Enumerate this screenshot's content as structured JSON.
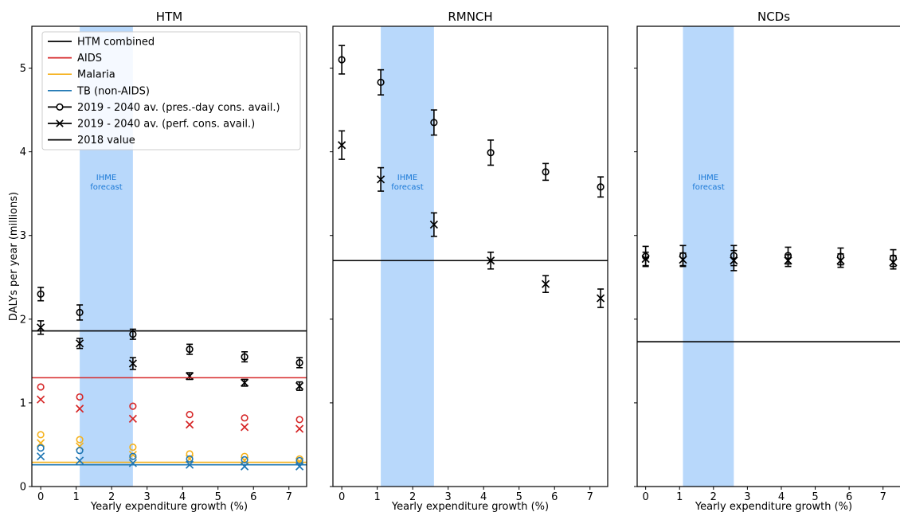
{
  "chart_data": [
    {
      "type": "scatter",
      "title": "HTM",
      "xlabel": "Yearly expenditure growth (%)",
      "ylabel": "DALYs per year (millions)",
      "xlim": [
        -0.25,
        7.5
      ],
      "ylim": [
        0,
        5.5
      ],
      "xticks": [
        0,
        1,
        2,
        3,
        4,
        5,
        6,
        7
      ],
      "yticks": [
        0,
        1,
        2,
        3,
        4,
        5
      ],
      "band": {
        "x0": 1.1,
        "x1": 2.6,
        "label_line1": "IHME",
        "label_line2": "forecast",
        "color": "#b8d8fb"
      },
      "legend": {
        "placement": "top-left",
        "entries": [
          {
            "label": "HTM combined",
            "kind": "line",
            "color": "#000000"
          },
          {
            "label": "AIDS",
            "kind": "line",
            "color": "#d62728"
          },
          {
            "label": "Malaria",
            "kind": "line",
            "color": "#f5b21d"
          },
          {
            "label": "TB (non-AIDS)",
            "kind": "line",
            "color": "#1f77b4"
          },
          {
            "label": "2019 - 2040 av. (pres.-day cons. avail.)",
            "kind": "circle",
            "color": "#000000"
          },
          {
            "label": "2019 - 2040 av. (perf. cons. avail.)",
            "kind": "cross",
            "color": "#000000"
          },
          {
            "label": "2018 value",
            "kind": "line",
            "color": "#000000"
          }
        ]
      },
      "x": [
        0,
        1.1,
        2.6,
        4.2,
        5.75,
        7.3
      ],
      "series": [
        {
          "name": "HTM combined",
          "color": "#000000",
          "hline": 1.86,
          "circle": [
            2.3,
            2.08,
            1.82,
            1.64,
            1.55,
            1.48
          ],
          "circle_err": [
            0.08,
            0.09,
            0.06,
            0.06,
            0.06,
            0.06
          ],
          "cross": [
            1.9,
            1.71,
            1.47,
            1.32,
            1.24,
            1.2
          ],
          "cross_err": [
            0.08,
            0.06,
            0.07,
            0.04,
            0.04,
            0.05
          ]
        },
        {
          "name": "AIDS",
          "color": "#d62728",
          "hline": 1.3,
          "circle": [
            1.19,
            1.07,
            0.96,
            0.86,
            0.82,
            0.8
          ],
          "cross": [
            1.04,
            0.93,
            0.81,
            0.74,
            0.71,
            0.69
          ]
        },
        {
          "name": "Malaria",
          "color": "#f5b21d",
          "hline": 0.29,
          "circle": [
            0.62,
            0.56,
            0.47,
            0.39,
            0.36,
            0.33
          ],
          "cross": [
            0.52,
            0.48,
            0.38,
            0.33,
            0.31,
            0.3
          ]
        },
        {
          "name": "TB (non-AIDS)",
          "color": "#1f77b4",
          "hline": 0.26,
          "circle": [
            0.46,
            0.43,
            0.36,
            0.33,
            0.32,
            0.31
          ],
          "cross": [
            0.36,
            0.31,
            0.28,
            0.26,
            0.24,
            0.24
          ]
        }
      ]
    },
    {
      "type": "scatter",
      "title": "RMNCH",
      "xlabel": "Yearly expenditure growth (%)",
      "xlim": [
        -0.25,
        7.5
      ],
      "ylim": [
        0,
        5.5
      ],
      "xticks": [
        0,
        1,
        2,
        3,
        4,
        5,
        6,
        7
      ],
      "yticks": [
        0,
        1,
        2,
        3,
        4,
        5
      ],
      "band": {
        "x0": 1.1,
        "x1": 2.6,
        "label_line1": "IHME",
        "label_line2": "forecast",
        "color": "#b8d8fb"
      },
      "x": [
        0,
        1.1,
        2.6,
        4.2,
        5.75,
        7.3
      ],
      "series": [
        {
          "color": "#000000",
          "hline": 2.7,
          "circle": [
            5.1,
            4.83,
            4.35,
            3.99,
            3.76,
            3.58
          ],
          "circle_err": [
            0.17,
            0.15,
            0.15,
            0.15,
            0.1,
            0.12
          ],
          "cross": [
            4.08,
            3.67,
            3.13,
            2.7,
            2.42,
            2.25
          ],
          "cross_err": [
            0.17,
            0.14,
            0.14,
            0.1,
            0.1,
            0.11
          ]
        }
      ]
    },
    {
      "type": "scatter",
      "title": "NCDs",
      "xlabel": "Yearly expenditure growth (%)",
      "xlim": [
        -0.25,
        7.5
      ],
      "ylim": [
        0,
        5.5
      ],
      "xticks": [
        0,
        1,
        2,
        3,
        4,
        5,
        6,
        7
      ],
      "yticks": [
        0,
        1,
        2,
        3,
        4,
        5
      ],
      "band": {
        "x0": 1.1,
        "x1": 2.6,
        "label_line1": "IHME",
        "label_line2": "forecast",
        "color": "#b8d8fb"
      },
      "x": [
        0,
        1.1,
        2.6,
        4.2,
        5.75,
        7.3
      ],
      "series": [
        {
          "color": "#000000",
          "hline": 1.73,
          "circle": [
            2.75,
            2.76,
            2.76,
            2.76,
            2.75,
            2.73
          ],
          "circle_err": [
            0.12,
            0.12,
            0.12,
            0.1,
            0.1,
            0.1
          ],
          "cross": [
            2.72,
            2.71,
            2.7,
            2.7,
            2.7,
            2.68
          ],
          "cross_err": [
            0.08,
            0.08,
            0.12,
            0.07,
            0.08,
            0.08
          ]
        }
      ]
    }
  ]
}
